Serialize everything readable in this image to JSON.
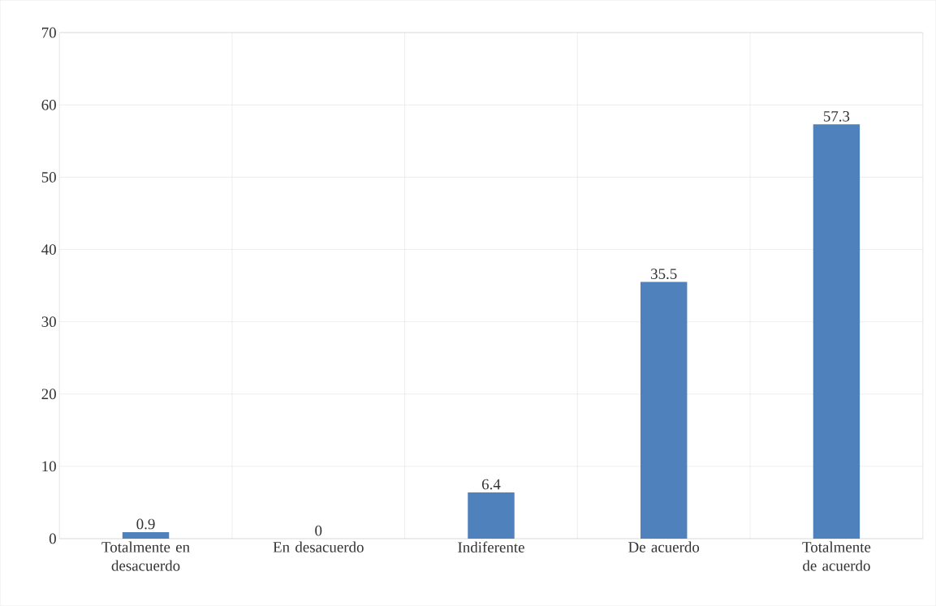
{
  "chart_data": {
    "type": "bar",
    "categories": [
      "Totalmente en desacuerdo",
      "En desacuerdo",
      "Indiferente",
      "De acuerdo",
      "Totalmente de acuerdo"
    ],
    "values": [
      0.9,
      0,
      6.4,
      35.5,
      57.3
    ],
    "color": "#4f81bd",
    "ylim": [
      0,
      70
    ],
    "yticks": [
      0,
      10,
      20,
      30,
      40,
      50,
      60,
      70
    ],
    "grid": true,
    "data_labels": true
  }
}
